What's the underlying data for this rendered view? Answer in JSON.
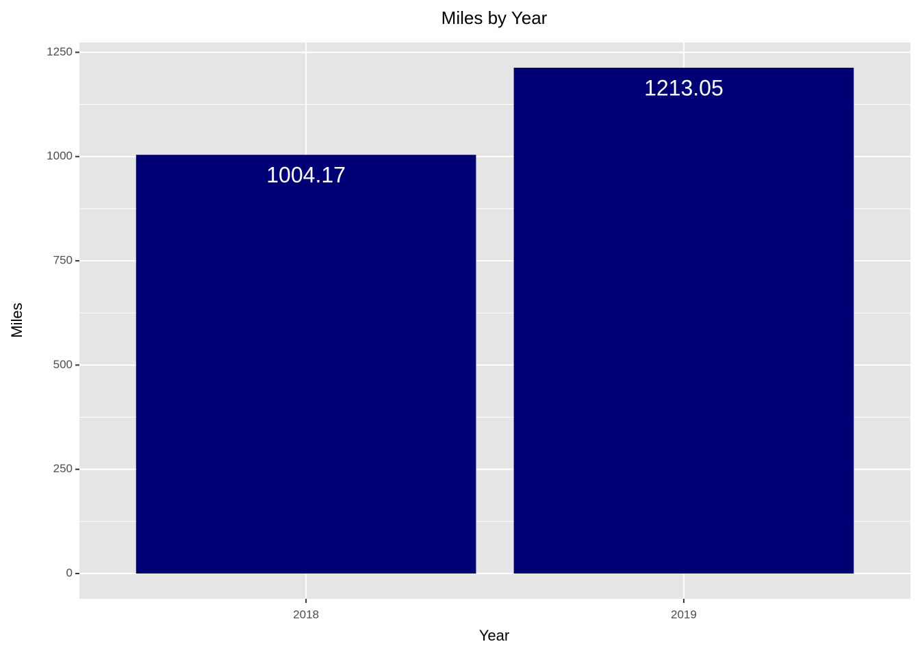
{
  "chart_data": {
    "type": "bar",
    "title": "Miles by Year",
    "x_label": "Year",
    "y_label": "Miles",
    "categories": [
      "2018",
      "2019"
    ],
    "values": [
      1004.17,
      1213.05
    ],
    "color": "#000075",
    "ylim": [
      -60.65,
      1273.7
    ],
    "yticks": [
      0,
      250,
      500,
      750,
      1000,
      1250
    ],
    "grid": true
  }
}
